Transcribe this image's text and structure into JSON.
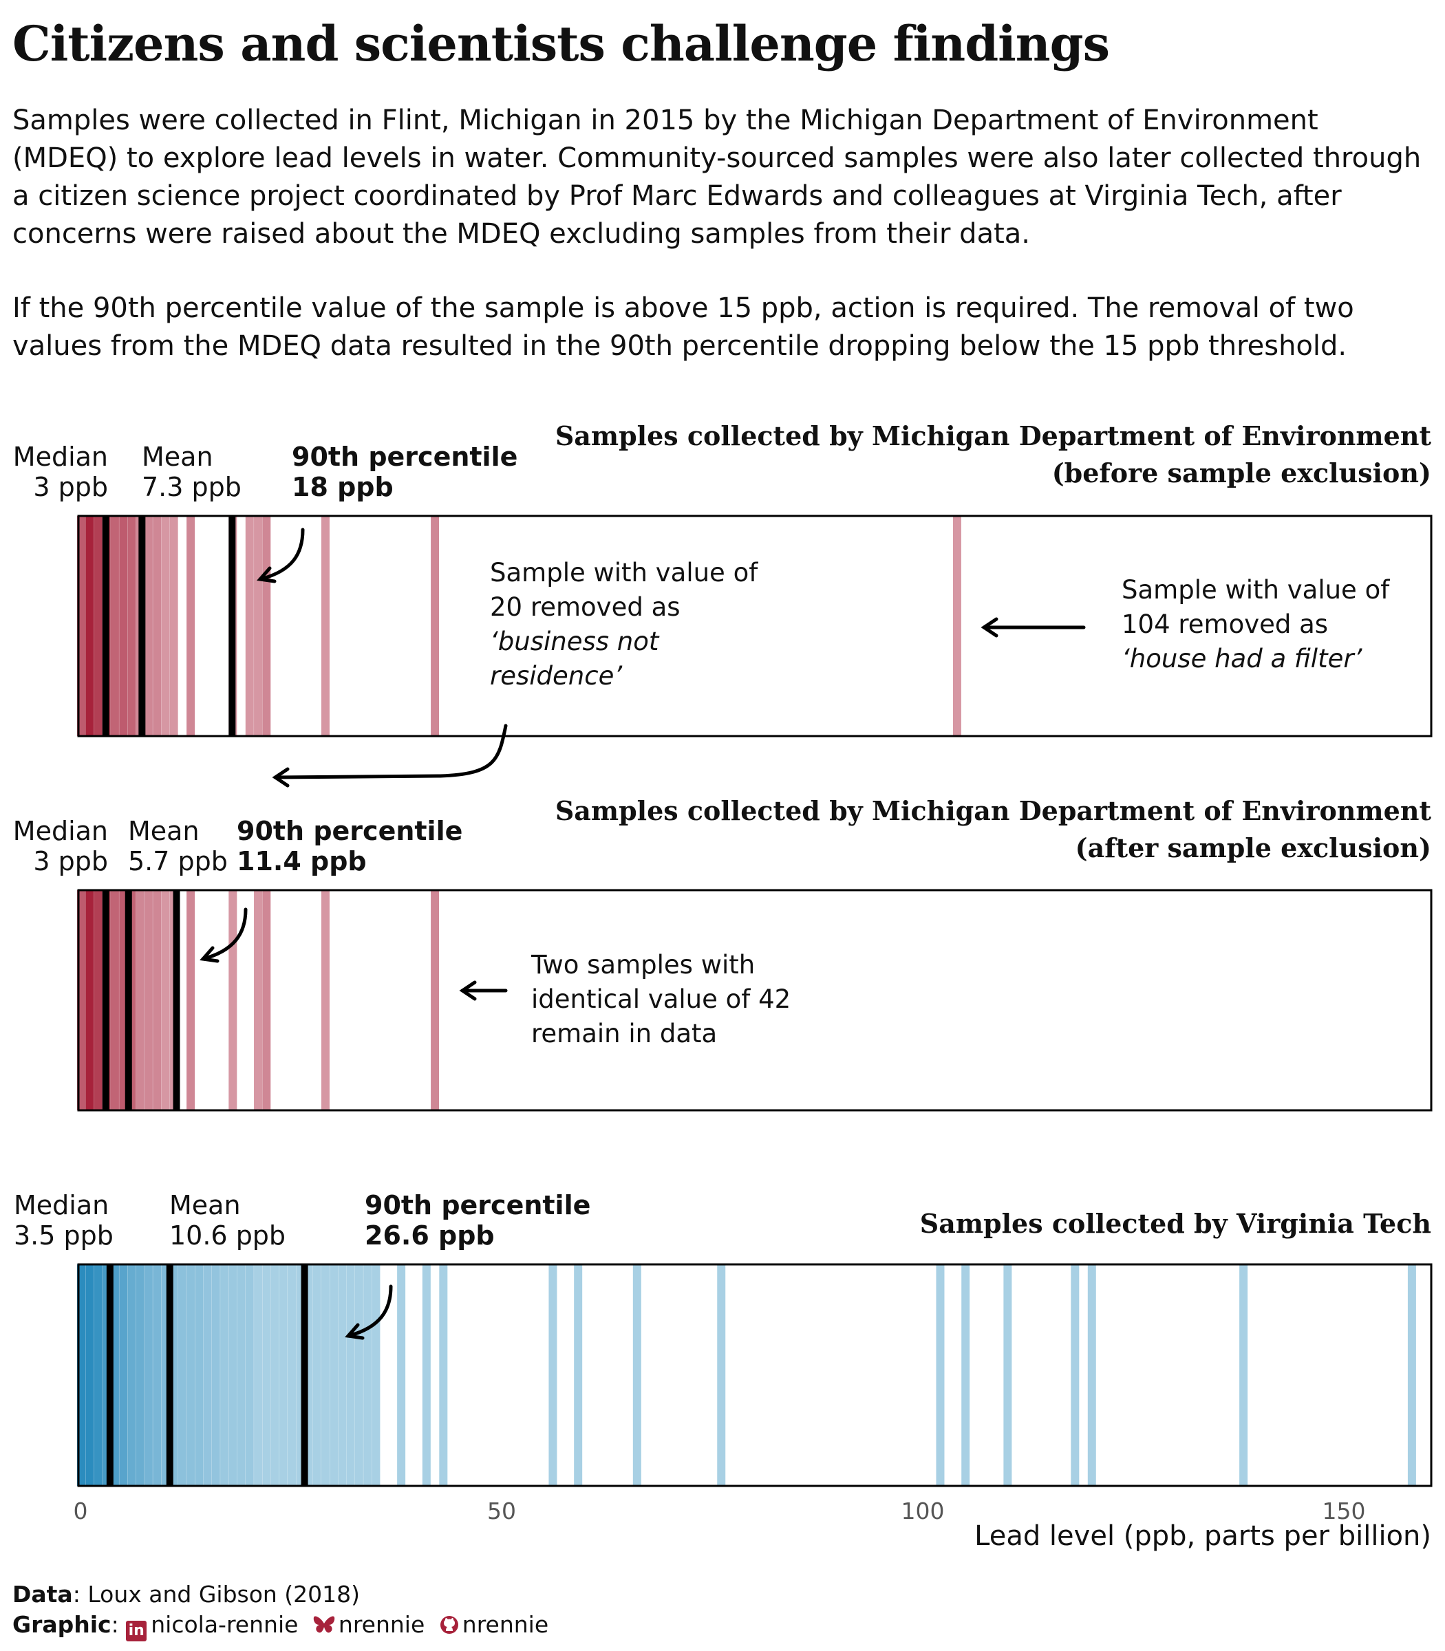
{
  "title": "Citizens and scientists challenge findings",
  "intro": "Samples were collected in Flint, Michigan in 2015 by the Michigan Department of Environment (MDEQ) to explore lead levels in water. Community-sourced samples were also later collected through a citizen science project coordinated by Prof Marc Edwards and colleagues at Virginia Tech, after concerns were raised about the MDEQ excluding samples from their data.",
  "rule": "If the 90th percentile value of the sample is above 15 ppb, action is required. The removal of two values from the MDEQ data resulted in the 90th percentile dropping below the 15 ppb threshold.",
  "panels": {
    "before": {
      "title_line1": "Samples collected by Michigan Department of Environment",
      "title_line2": "(before sample exclusion)",
      "median_label": "Median",
      "median_value": "3 ppb",
      "mean_label": "Mean",
      "mean_value": "7.3 ppb",
      "p90_label": "90th percentile",
      "p90_value": "18 ppb",
      "note_a1": "Sample with value of",
      "note_a2": "20 removed as",
      "note_a3": "‘business not",
      "note_a4": "residence’",
      "note_b1": "Sample with value of",
      "note_b2": "104 removed as",
      "note_b3": "‘house had a filter’"
    },
    "after": {
      "title_line1": "Samples collected by Michigan Department of Environment",
      "title_line2": "(after sample exclusion)",
      "median_label": "Median",
      "median_value": "3 ppb",
      "mean_label": "Mean",
      "mean_value": "5.7 ppb",
      "p90_label": "90th percentile",
      "p90_value": "11.4 ppb",
      "note_1": "Two samples with",
      "note_2": "identical value of 42",
      "note_3": "remain in data"
    },
    "vt": {
      "title": "Samples collected by Virginia Tech",
      "median_label": "Median",
      "median_value": "3.5 ppb",
      "mean_label": "Mean",
      "mean_value": "10.6 ppb",
      "p90_label": "90th percentile",
      "p90_value": "26.6 ppb"
    }
  },
  "axis": {
    "title": "Lead level (ppb, parts per billion)",
    "ticks": [
      "0",
      "50",
      "100",
      "150"
    ]
  },
  "credits": {
    "data_label": "Data",
    "data_text": ": Loux and Gibson (2018)",
    "graphic_label": "Graphic",
    "graphic_sep": ":",
    "linkedin": "nicola-rennie",
    "bluesky": "nrennie",
    "github": "nrennie"
  },
  "colors": {
    "red": "#a7223b",
    "blue": "#2b8cbe",
    "stat_line": "#000000"
  },
  "chart_data": {
    "type": "heatmap",
    "xlabel": "Lead level (ppb, parts per billion)",
    "xlim": [
      0,
      160
    ],
    "xticks": [
      0,
      50,
      100,
      150
    ],
    "series": [
      {
        "name": "Samples collected by Michigan Department of Environment (before sample exclusion)",
        "values": [
          0,
          0,
          0,
          0,
          0,
          0,
          1,
          1,
          1,
          1,
          1,
          1,
          1,
          1,
          1,
          1,
          1,
          1,
          1,
          1,
          1,
          2,
          2,
          2,
          2,
          2,
          2,
          2,
          2,
          2,
          2,
          3,
          3,
          3,
          3,
          3,
          3,
          3,
          3,
          3,
          3,
          4,
          4,
          4,
          4,
          4,
          5,
          5,
          5,
          5,
          5,
          5,
          6,
          6,
          6,
          6,
          6,
          7,
          7,
          8,
          8,
          9,
          9,
          10,
          11,
          13,
          13,
          18,
          20,
          21,
          22,
          22,
          29,
          42,
          42,
          104
        ],
        "median": 3,
        "mean": 7.3,
        "p90": 18
      },
      {
        "name": "Samples collected by Michigan Department of Environment (after sample exclusion)",
        "values": [
          0,
          0,
          0,
          0,
          0,
          0,
          1,
          1,
          1,
          1,
          1,
          1,
          1,
          1,
          1,
          1,
          1,
          1,
          1,
          1,
          1,
          2,
          2,
          2,
          2,
          2,
          2,
          2,
          2,
          2,
          2,
          3,
          3,
          3,
          3,
          3,
          3,
          3,
          3,
          3,
          3,
          4,
          4,
          4,
          4,
          4,
          5,
          5,
          5,
          5,
          5,
          5,
          6,
          6,
          6,
          6,
          6,
          7,
          7,
          8,
          8,
          9,
          9,
          10,
          11,
          13,
          13,
          18,
          21,
          22,
          22,
          29,
          42,
          42
        ],
        "median": 3,
        "mean": 5.7,
        "p90": 11.4
      },
      {
        "name": "Samples collected by Virginia Tech",
        "values": [
          0,
          0,
          0,
          0,
          0,
          0,
          0,
          0,
          0,
          0,
          0,
          0,
          0,
          0,
          0,
          0,
          0,
          0,
          0,
          0,
          0,
          0,
          0,
          0,
          0,
          0,
          0,
          0,
          0,
          0,
          1,
          1,
          1,
          1,
          1,
          1,
          1,
          1,
          1,
          1,
          1,
          1,
          1,
          1,
          1,
          1,
          1,
          1,
          1,
          1,
          1,
          1,
          1,
          1,
          1,
          1,
          1,
          1,
          1,
          1,
          2,
          2,
          2,
          2,
          2,
          2,
          2,
          2,
          2,
          2,
          2,
          2,
          2,
          2,
          2,
          2,
          2,
          2,
          2,
          2,
          2,
          2,
          2,
          2,
          2,
          3,
          3,
          3,
          3,
          3,
          3,
          3,
          3,
          3,
          3,
          3,
          3,
          3,
          3,
          3,
          3,
          3,
          3,
          3,
          3,
          4,
          4,
          4,
          4,
          4,
          4,
          4,
          4,
          4,
          4,
          4,
          4,
          4,
          4,
          4,
          4,
          4,
          4,
          5,
          5,
          5,
          5,
          5,
          5,
          5,
          5,
          5,
          5,
          5,
          5,
          5,
          5,
          5,
          6,
          6,
          6,
          6,
          6,
          6,
          6,
          6,
          6,
          6,
          6,
          7,
          7,
          7,
          7,
          7,
          7,
          7,
          7,
          7,
          7,
          8,
          8,
          8,
          8,
          8,
          8,
          8,
          8,
          9,
          9,
          9,
          9,
          9,
          9,
          9,
          10,
          10,
          10,
          10,
          10,
          10,
          11,
          11,
          11,
          11,
          11,
          12,
          12,
          12,
          12,
          13,
          13,
          13,
          13,
          14,
          14,
          14,
          14,
          15,
          15,
          15,
          16,
          16,
          16,
          17,
          17,
          18,
          18,
          19,
          19,
          20,
          20,
          21,
          22,
          23,
          24,
          25,
          26,
          27,
          28,
          29,
          30,
          31,
          32,
          33,
          34,
          35,
          38,
          41,
          43,
          56,
          59,
          66,
          76,
          102,
          105,
          110,
          118,
          120,
          138,
          158
        ],
        "median": 3.5,
        "mean": 10.6,
        "p90": 26.6
      }
    ]
  }
}
